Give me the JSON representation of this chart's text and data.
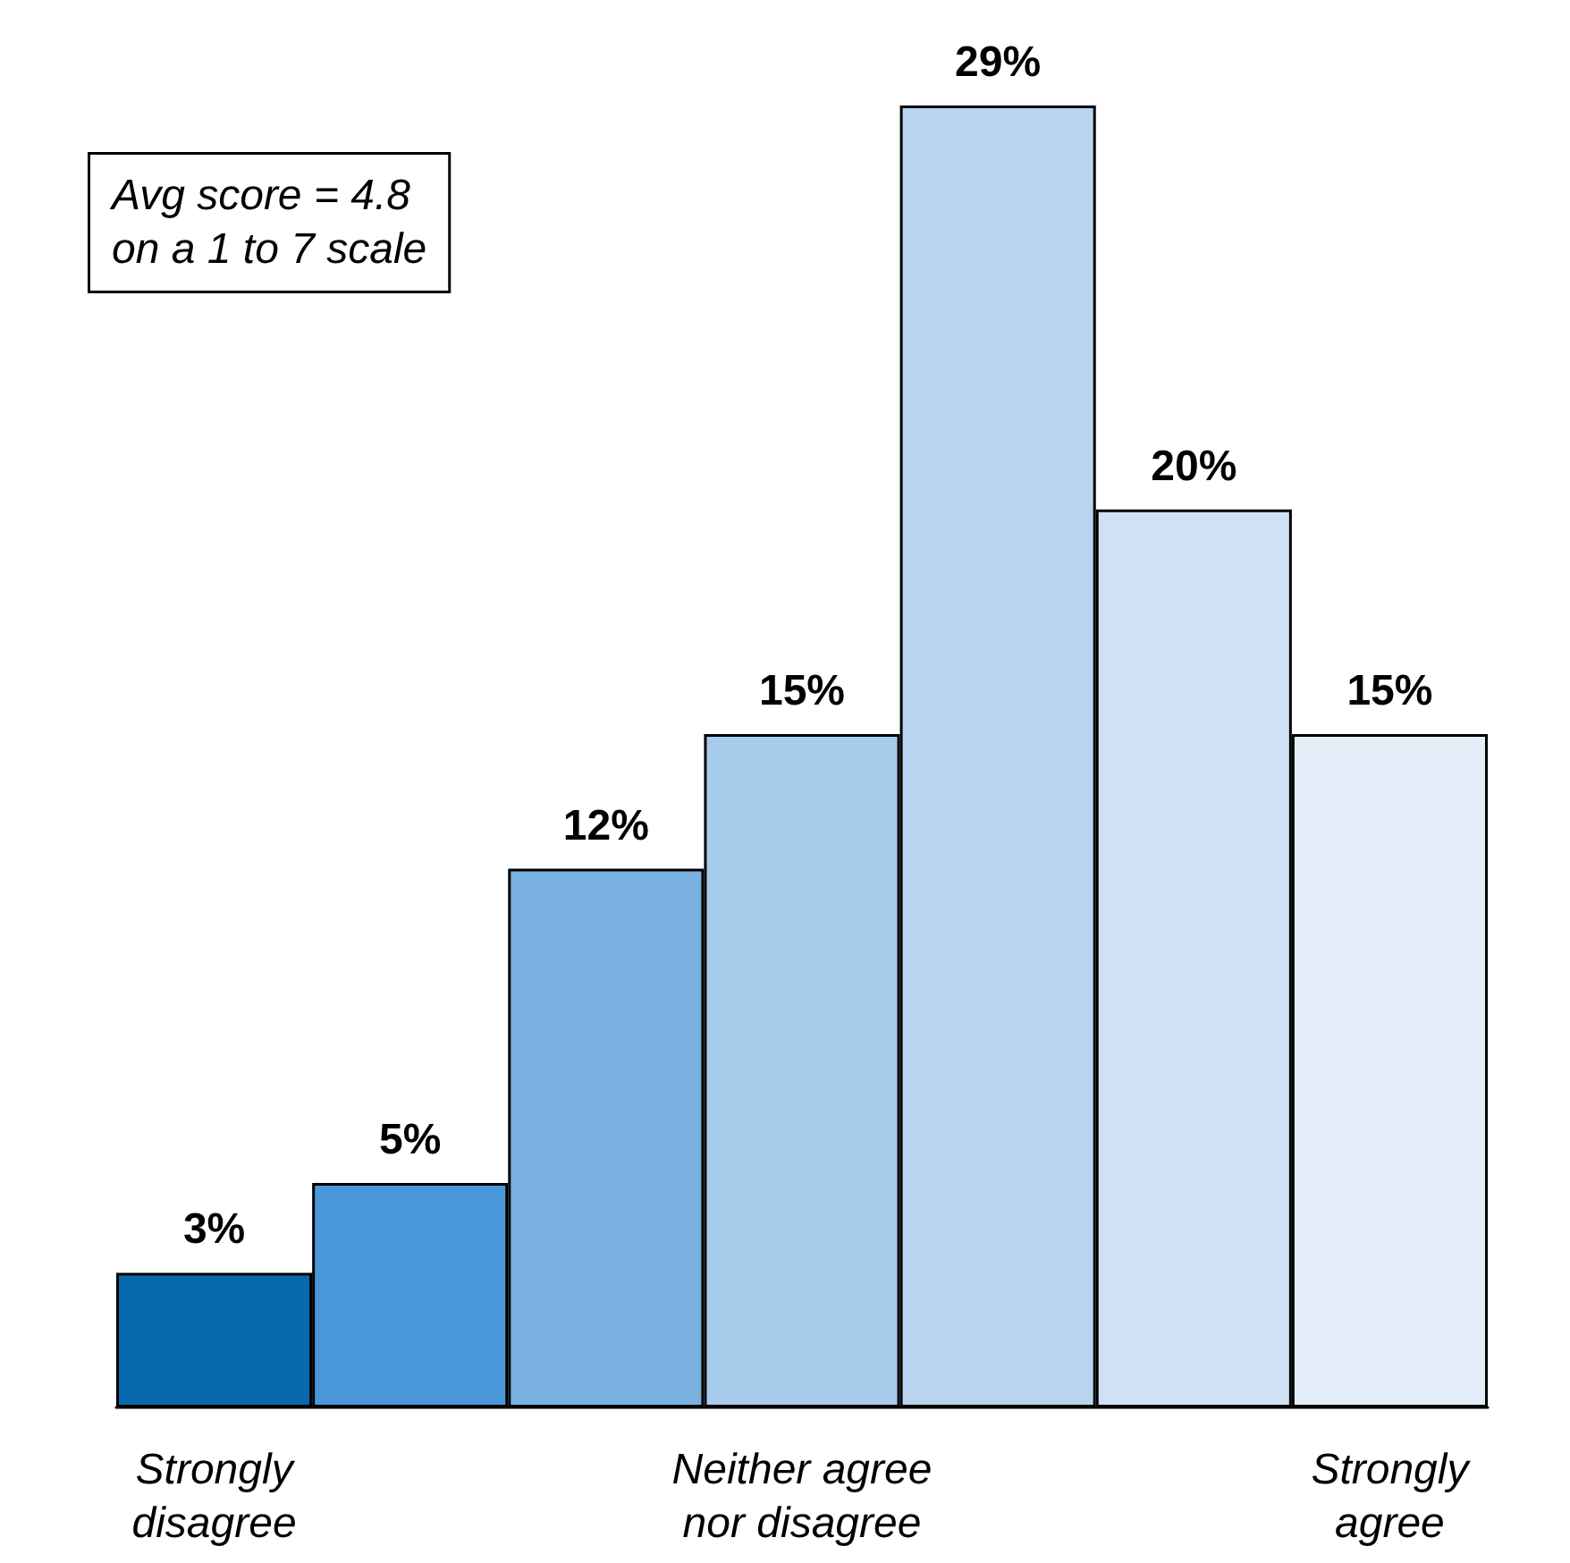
{
  "chart_data": {
    "type": "bar",
    "categories": [
      "Strongly\ndisagree",
      null,
      null,
      "Neither agree\nnor disagree",
      null,
      null,
      "Strongly\nagree"
    ],
    "values": [
      3,
      5,
      12,
      15,
      29,
      20,
      15
    ],
    "value_labels": [
      "3%",
      "5%",
      "12%",
      "15%",
      "29%",
      "20%",
      "15%"
    ],
    "colors": [
      "#0868ac",
      "#4a98d9",
      "#79b1e1",
      "#a6cbeb",
      "#b9d4ee",
      "#cfe1f4",
      "#e4eef9"
    ],
    "annotations": [
      "Avg score = 4.8\non a 1 to 7 scale"
    ]
  }
}
